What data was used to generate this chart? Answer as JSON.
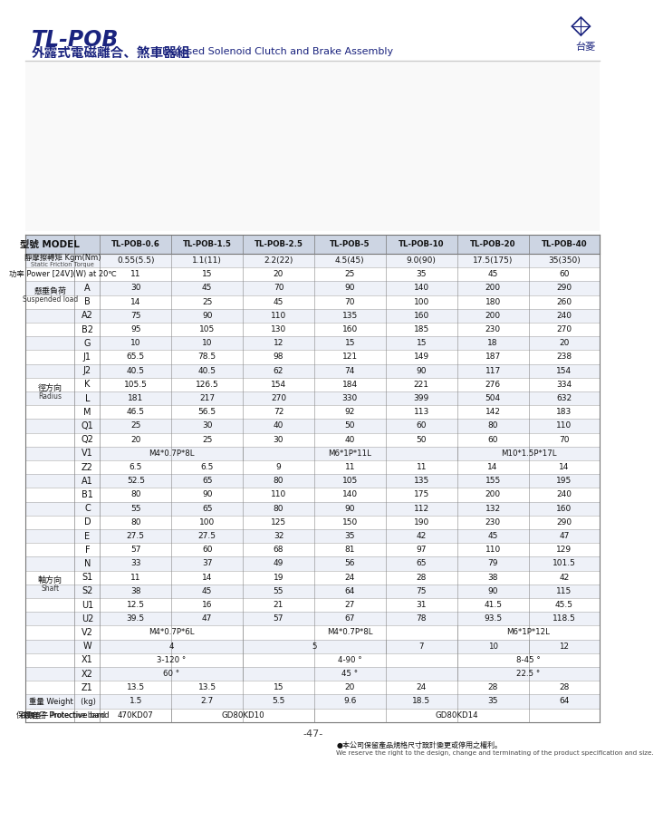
{
  "title_line1": "TL-POB",
  "title_line2": "外露式電磁離合、煞車器組",
  "title_line2_en": "Exposed Solenoid Clutch and Brake Assembly",
  "page_num": "-47-",
  "footer_note": "●本公司保留產品規格尺寸設計變更或停用之權利。",
  "footer_note_en": "We reserve the right to the design, change and terminating of the product specification and size.",
  "models": [
    "TL-POB-0.6",
    "TL-POB-1.5",
    "TL-POB-2.5",
    "TL-POB-5",
    "TL-POB-10",
    "TL-POB-20",
    "TL-POB-40"
  ],
  "group_info": {
    "2": [
      "懸垂負荷\nSuspended load",
      2
    ],
    "4": [
      "徑方向\nRadius",
      12
    ],
    "16": [
      "軸方向\nShaft",
      16
    ]
  },
  "rows": [
    {
      "label": "靜摩擦轉矩 Kgm(Nm)\nStatic Friction Torque",
      "label2": "",
      "values": [
        "0.55(5.5)",
        "1.1(11)",
        "2.2(22)",
        "4.5(45)",
        "9.0(90)",
        "17.5(175)",
        "35(350)"
      ]
    },
    {
      "label": "功率 Power [24V](W) at 20℃",
      "label2": "",
      "values": [
        "11",
        "15",
        "20",
        "25",
        "35",
        "45",
        "60"
      ]
    },
    {
      "label": "",
      "label2": "A",
      "values": [
        "30",
        "45",
        "70",
        "90",
        "140",
        "200",
        "290"
      ]
    },
    {
      "label": "",
      "label2": "B",
      "values": [
        "14",
        "25",
        "45",
        "70",
        "100",
        "180",
        "260"
      ]
    },
    {
      "label": "",
      "label2": "A2",
      "values": [
        "75",
        "90",
        "110",
        "135",
        "160",
        "200",
        "240"
      ]
    },
    {
      "label": "",
      "label2": "B2",
      "values": [
        "95",
        "105",
        "130",
        "160",
        "185",
        "230",
        "270"
      ]
    },
    {
      "label": "",
      "label2": "G",
      "values": [
        "10",
        "10",
        "12",
        "15",
        "15",
        "18",
        "20"
      ]
    },
    {
      "label": "",
      "label2": "J1",
      "values": [
        "65.5",
        "78.5",
        "98",
        "121",
        "149",
        "187",
        "238"
      ]
    },
    {
      "label": "",
      "label2": "J2",
      "values": [
        "40.5",
        "40.5",
        "62",
        "74",
        "90",
        "117",
        "154"
      ]
    },
    {
      "label": "",
      "label2": "K",
      "values": [
        "105.5",
        "126.5",
        "154",
        "184",
        "221",
        "276",
        "334"
      ]
    },
    {
      "label": "",
      "label2": "L",
      "values": [
        "181",
        "217",
        "270",
        "330",
        "399",
        "504",
        "632"
      ]
    },
    {
      "label": "",
      "label2": "M",
      "values": [
        "46.5",
        "56.5",
        "72",
        "92",
        "113",
        "142",
        "183"
      ]
    },
    {
      "label": "",
      "label2": "Q1",
      "values": [
        "25",
        "30",
        "40",
        "50",
        "60",
        "80",
        "110"
      ]
    },
    {
      "label": "",
      "label2": "Q2",
      "values": [
        "20",
        "25",
        "30",
        "40",
        "50",
        "60",
        "70"
      ]
    },
    {
      "label": "",
      "label2": "V1",
      "values": [
        "M4*0.7P*8L",
        "M4*0.7P*8L",
        "M6*1P*11L",
        "M6*1P*11L",
        "M6*1P*11L",
        "M10*1.5P*17L",
        "M10*1.5P*17L"
      ]
    },
    {
      "label": "",
      "label2": "Z2",
      "values": [
        "6.5",
        "6.5",
        "9",
        "11",
        "11",
        "14",
        "14"
      ]
    },
    {
      "label": "",
      "label2": "A1",
      "values": [
        "52.5",
        "65",
        "80",
        "105",
        "135",
        "155",
        "195"
      ]
    },
    {
      "label": "",
      "label2": "B1",
      "values": [
        "80",
        "90",
        "110",
        "140",
        "175",
        "200",
        "240"
      ]
    },
    {
      "label": "",
      "label2": "C",
      "values": [
        "55",
        "65",
        "80",
        "90",
        "112",
        "132",
        "160"
      ]
    },
    {
      "label": "",
      "label2": "D",
      "values": [
        "80",
        "100",
        "125",
        "150",
        "190",
        "230",
        "290"
      ]
    },
    {
      "label": "",
      "label2": "E",
      "values": [
        "27.5",
        "27.5",
        "32",
        "35",
        "42",
        "45",
        "47"
      ]
    },
    {
      "label": "",
      "label2": "F",
      "values": [
        "57",
        "60",
        "68",
        "81",
        "97",
        "110",
        "129"
      ]
    },
    {
      "label": "",
      "label2": "N",
      "values": [
        "33",
        "37",
        "49",
        "56",
        "65",
        "79",
        "101.5"
      ]
    },
    {
      "label": "",
      "label2": "S1",
      "values": [
        "11",
        "14",
        "19",
        "24",
        "28",
        "38",
        "42"
      ]
    },
    {
      "label": "",
      "label2": "S2",
      "values": [
        "38",
        "45",
        "55",
        "64",
        "75",
        "90",
        "115"
      ]
    },
    {
      "label": "",
      "label2": "U1",
      "values": [
        "12.5",
        "16",
        "21",
        "27",
        "31",
        "41.5",
        "45.5"
      ]
    },
    {
      "label": "",
      "label2": "U2",
      "values": [
        "39.5",
        "47",
        "57",
        "67",
        "78",
        "93.5",
        "118.5"
      ]
    },
    {
      "label": "",
      "label2": "V2",
      "values": [
        "M4*0.7P*6L",
        "M4*0.7P*6L",
        "M4*0.7P*8L",
        "M4*0.7P*8L",
        "M4*0.7P*8L",
        "M6*1P*12L",
        "M6*1P*12L"
      ]
    },
    {
      "label": "",
      "label2": "W",
      "values": [
        "4",
        "4",
        "5",
        "5",
        "7",
        "10",
        "12"
      ]
    },
    {
      "label": "",
      "label2": "X1",
      "values": [
        "3-120°",
        "3-120°",
        "4-90°",
        "4-90°",
        "4-90°",
        "8-45°",
        "8-45°"
      ]
    },
    {
      "label": "",
      "label2": "X2",
      "values": [
        "60°",
        "60°",
        "45°",
        "45°",
        "45°",
        "22.5°",
        "22.5°"
      ]
    },
    {
      "label": "",
      "label2": "Z1",
      "values": [
        "13.5",
        "13.5",
        "15",
        "20",
        "24",
        "28",
        "28"
      ]
    },
    {
      "label": "重量 Weight　(kg)",
      "label2": "",
      "values": [
        "1.5",
        "2.7",
        "5.5",
        "9.6",
        "18.5",
        "35",
        "64"
      ]
    },
    {
      "label": "保護套子 Protective band",
      "label2": "",
      "values": [
        "470KD07",
        "GD80KD10",
        "GD80KD10",
        "GD80KD14",
        "GD80KD14",
        "GD80KD14",
        "GD80KD14"
      ]
    }
  ]
}
